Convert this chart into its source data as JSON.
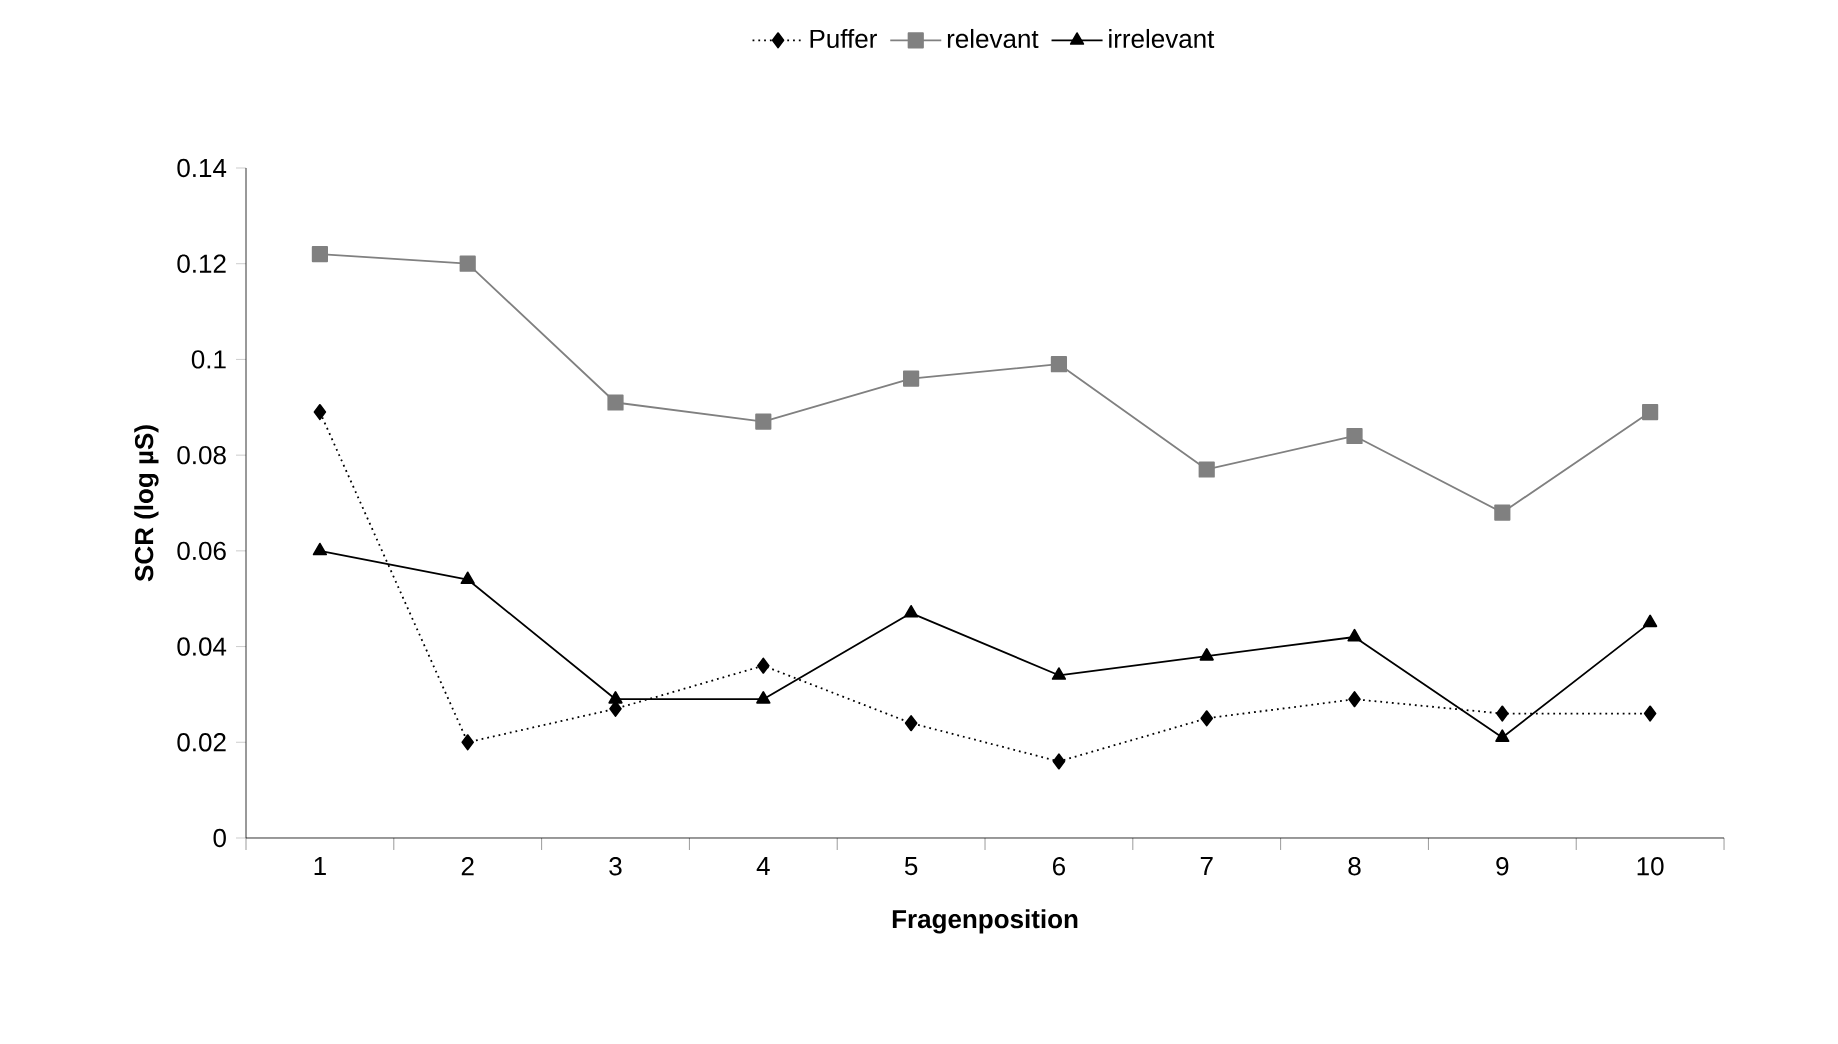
{
  "chart_data": {
    "type": "line",
    "xlabel": "Fragenposition",
    "ylabel": "SCR (log µS)",
    "categories": [
      "1",
      "2",
      "3",
      "4",
      "5",
      "6",
      "7",
      "8",
      "9",
      "10"
    ],
    "ylim": [
      0,
      0.14
    ],
    "yticks": [
      0,
      0.02,
      0.04,
      0.06,
      0.08,
      0.1,
      0.12,
      0.14
    ],
    "grid": false,
    "legend": "top",
    "series": [
      {
        "name": "Puffer",
        "color": "#000000",
        "marker": "diamond",
        "line_style": "dotted",
        "values": [
          0.089,
          0.02,
          0.027,
          0.036,
          0.024,
          0.016,
          0.025,
          0.029,
          0.026,
          0.026
        ]
      },
      {
        "name": "relevant",
        "color": "#808080",
        "marker": "square",
        "line_style": "solid",
        "values": [
          0.122,
          0.12,
          0.091,
          0.087,
          0.096,
          0.099,
          0.077,
          0.084,
          0.068,
          0.089
        ]
      },
      {
        "name": "irrelevant",
        "color": "#000000",
        "marker": "triangle",
        "line_style": "solid",
        "values": [
          0.06,
          0.054,
          0.029,
          0.029,
          0.047,
          0.034,
          0.038,
          0.042,
          0.021,
          0.045
        ]
      }
    ]
  }
}
